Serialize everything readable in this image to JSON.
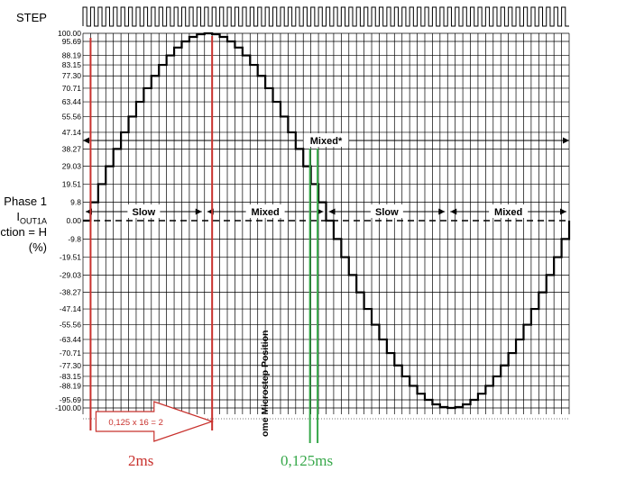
{
  "chart_data": {
    "type": "line",
    "step_label": "STEP",
    "ylabel_lines": [
      "Phase 1",
      "I",
      "OUT1A",
      "ction = H",
      "(%)"
    ],
    "yticks": [
      "100.00",
      "95.69",
      "88.19",
      "83.15",
      "77.30",
      "70.71",
      "63.44",
      "55.56",
      "47.14",
      "38.27",
      "29.03",
      "19.51",
      "9.8",
      "0.00",
      "-9.8",
      "-19.51",
      "-29.03",
      "-38.27",
      "-47.14",
      "-55.56",
      "-63.44",
      "-70.71",
      "-77.30",
      "-83.15",
      "-88.19",
      "-95.69",
      "-100.00"
    ],
    "ylim": [
      -100,
      100
    ],
    "microsteps_per_period": 64,
    "series": [
      {
        "values": [
          0,
          9.8,
          19.51,
          29.03,
          38.27,
          47.14,
          55.56,
          63.44,
          70.71,
          77.3,
          83.15,
          88.19,
          92.39,
          95.69,
          98.08,
          99.52,
          100.0,
          99.52,
          98.08,
          95.69,
          92.39,
          88.19,
          83.15,
          77.3,
          70.71,
          63.44,
          55.56,
          47.14,
          38.27,
          29.03,
          19.51,
          9.8,
          0,
          -9.8,
          -19.51,
          -29.03,
          -38.27,
          -47.14,
          -55.56,
          -63.44,
          -70.71,
          -77.3,
          -83.15,
          -88.19,
          -92.39,
          -95.69,
          -98.08,
          -99.52,
          -100.0,
          -99.52,
          -98.08,
          -95.69,
          -92.39,
          -88.19,
          -83.15,
          -77.3,
          -70.71,
          -63.44,
          -55.56,
          -47.14,
          -38.27,
          -29.03,
          -19.51,
          -9.8,
          0
        ]
      }
    ],
    "decay_annotations": {
      "mixed_star": "Mixed*",
      "segments": [
        "Slow",
        "Mixed",
        "Slow",
        "Mixed"
      ]
    },
    "vertical_label": "ome Microstep Position",
    "markers": {
      "red_box_text": "0,125 x 16 = 2",
      "red_label": "2ms",
      "green_label": "0,125ms",
      "red_color": "#c8302c",
      "green_color": "#37a84a"
    }
  }
}
